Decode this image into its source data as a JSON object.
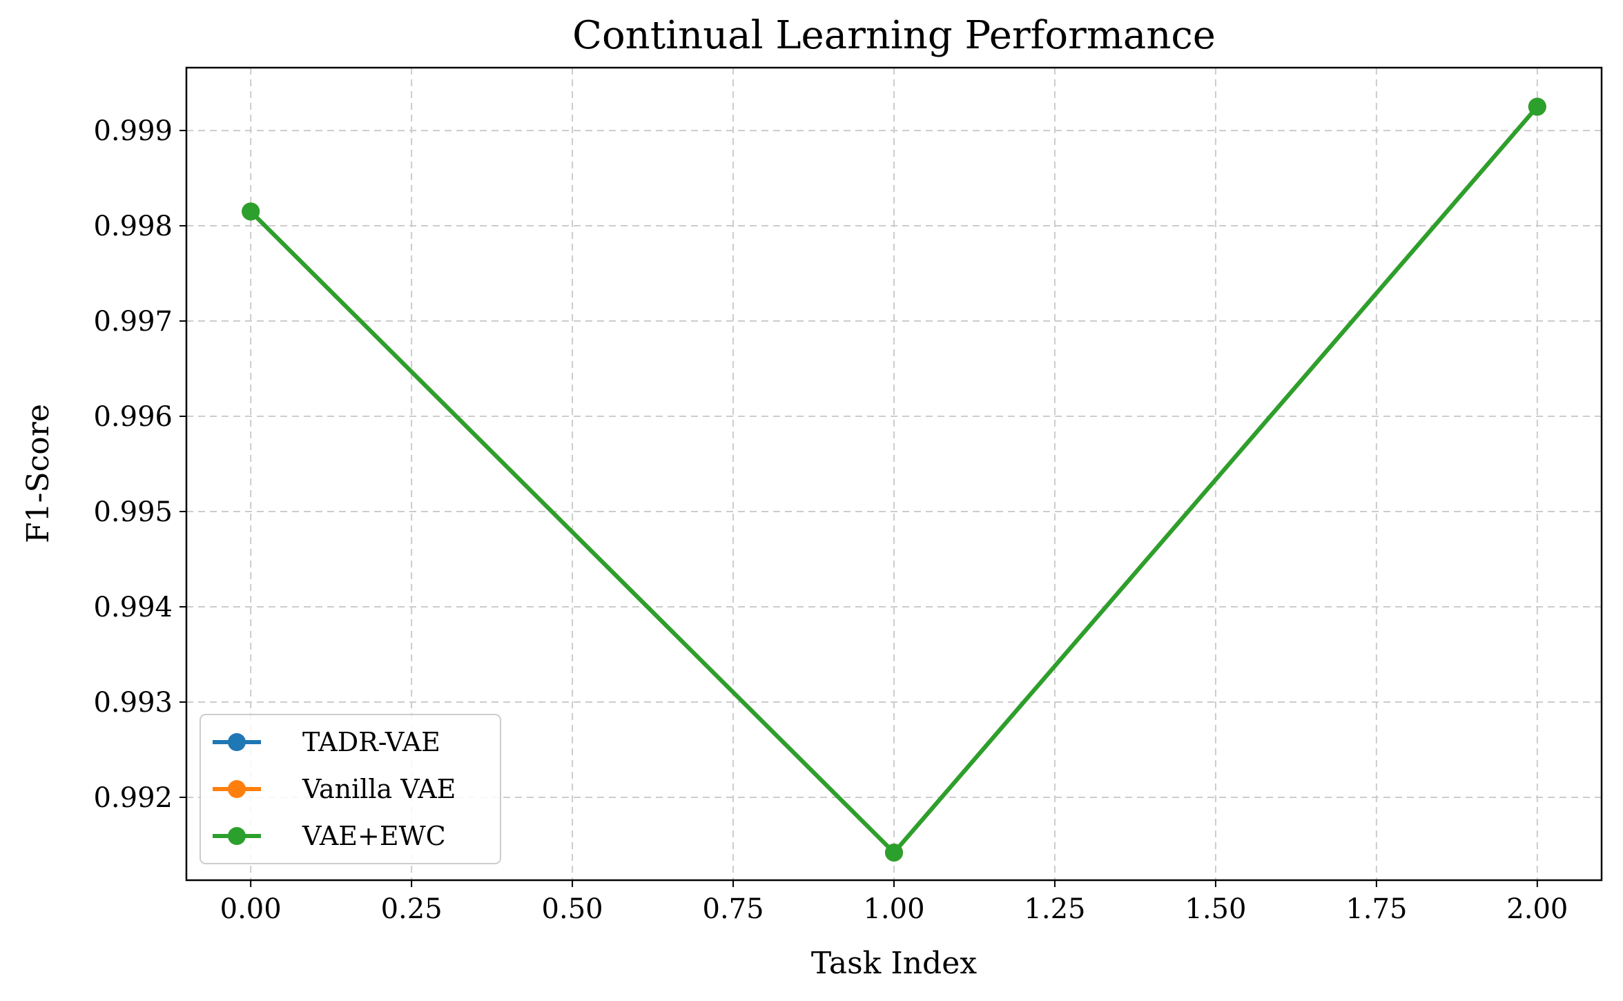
{
  "chart_data": {
    "type": "line",
    "title": "Continual Learning Performance",
    "xlabel": "Task Index",
    "ylabel": "F1-Score",
    "xlim": [
      -0.1,
      2.1
    ],
    "ylim": [
      0.99113,
      0.99966
    ],
    "xticks": [
      0.0,
      0.25,
      0.5,
      0.75,
      1.0,
      1.25,
      1.5,
      1.75,
      2.0
    ],
    "xtick_labels": [
      "0.00",
      "0.25",
      "0.50",
      "0.75",
      "1.00",
      "1.25",
      "1.50",
      "1.75",
      "2.00"
    ],
    "yticks": [
      0.992,
      0.993,
      0.994,
      0.995,
      0.996,
      0.997,
      0.998,
      0.999
    ],
    "ytick_labels": [
      "0.992",
      "0.993",
      "0.994",
      "0.995",
      "0.996",
      "0.997",
      "0.998",
      "0.999"
    ],
    "grid": true,
    "legend_position": "lower-left",
    "series": [
      {
        "name": "TADR-VAE",
        "color": "#1f77b4",
        "x": [
          0,
          1,
          2
        ],
        "y": [
          0.99815,
          0.99142,
          0.99925
        ]
      },
      {
        "name": "Vanilla VAE",
        "color": "#ff7f0e",
        "x": [
          0,
          1,
          2
        ],
        "y": [
          0.99815,
          0.99142,
          0.99925
        ]
      },
      {
        "name": "VAE+EWC",
        "color": "#2ca02c",
        "x": [
          0,
          1,
          2
        ],
        "y": [
          0.99815,
          0.99142,
          0.99925
        ]
      }
    ]
  }
}
